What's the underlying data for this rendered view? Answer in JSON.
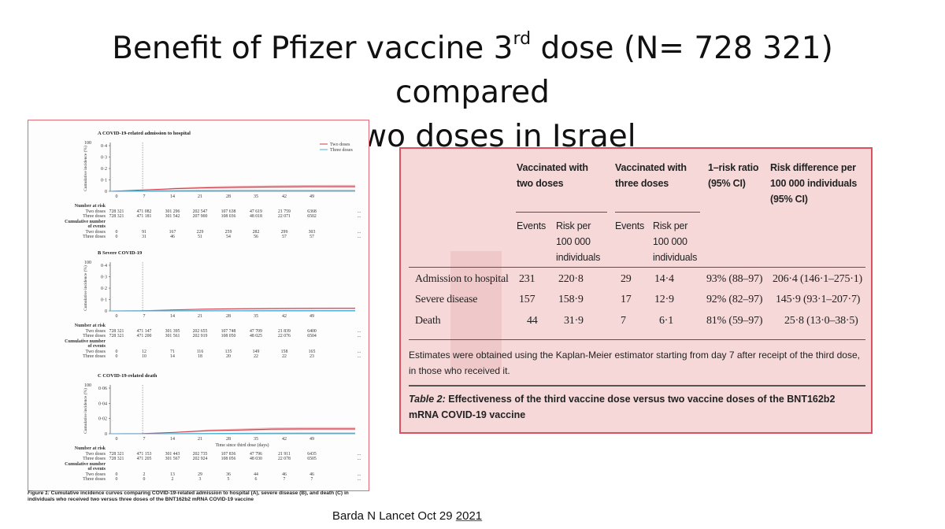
{
  "slide": {
    "title_pre": "Benefit of Pfizer vaccine 3",
    "title_sup": "rd",
    "title_post": " dose (N= 728 321) compared",
    "title_line2": "to two doses in Israel",
    "citation_pre": "Barda N Lancet Oct 29 ",
    "citation_year": "2021"
  },
  "figure": {
    "legend": [
      "Two doses",
      "Three doses"
    ],
    "ylabel": "Cumulative incidence (%)",
    "xticks": [
      "0",
      "7",
      "14",
      "21",
      "28",
      "35",
      "42",
      "49"
    ],
    "xlabel": "Time since third dose (days)",
    "labels": {
      "number_at_risk": "Number at risk",
      "cumulative": "Cumulative number",
      "of_events": "of events",
      "two_doses": "Two doses",
      "three_doses": "Three doses",
      "dots": "..."
    },
    "panels": [
      {
        "title": "A  COVID-19-related admission to hospital",
        "yticks": [
          "0·4",
          "0·3",
          "0·2",
          "0·1",
          "0"
        ],
        "ymax": 0.4,
        "risk_two": [
          "728 321",
          "471 082",
          "301 296",
          "202 547",
          "107 638",
          "47 619",
          "21 759",
          "6368"
        ],
        "risk_three": [
          "728 321",
          "471 181",
          "301 542",
          "207 900",
          "108 036",
          "48 018",
          "22 071",
          "6502"
        ],
        "events_two": [
          "0",
          "91",
          "167",
          "229",
          "259",
          "282",
          "299",
          "303"
        ],
        "events_three": [
          "0",
          "31",
          "46",
          "51",
          "54",
          "56",
          "57",
          "57"
        ]
      },
      {
        "title": "B  Severe COVID-19",
        "yticks": [
          "0·4",
          "0·3",
          "0·2",
          "0·1",
          "0"
        ],
        "ymax": 0.4,
        "risk_two": [
          "728 321",
          "471 147",
          "301 395",
          "202 655",
          "107 748",
          "47 709",
          "21 839",
          "6400"
        ],
        "risk_three": [
          "728 321",
          "471 200",
          "301 561",
          "202 919",
          "108 050",
          "48 025",
          "22 076",
          "6504"
        ],
        "events_two": [
          "0",
          "12",
          "71",
          "116",
          "135",
          "149",
          "158",
          "165"
        ],
        "events_three": [
          "0",
          "10",
          "14",
          "18",
          "20",
          "22",
          "22",
          "23"
        ]
      },
      {
        "title": "C  COVID-19-related death",
        "yticks": [
          "0·06",
          "0·04",
          "0·02",
          "0"
        ],
        "ymax": 0.06,
        "risk_two": [
          "728 321",
          "471 153",
          "301 443",
          "202 735",
          "107 836",
          "47 796",
          "21 911",
          "6435"
        ],
        "risk_three": [
          "728 321",
          "471 205",
          "301 567",
          "202 924",
          "108 056",
          "48 030",
          "22 078",
          "6505"
        ],
        "events_two": [
          "0",
          "2",
          "13",
          "29",
          "36",
          "44",
          "46",
          "46"
        ],
        "events_three": [
          "0",
          "0",
          "2",
          "3",
          "5",
          "6",
          "7",
          "7"
        ]
      }
    ],
    "caption_label": "Figure 1:",
    "caption": " Cumulative incidence curves comparing COVID-19-related admission to hospital (A), severe disease (B), and death (C) in individuals who received two versus three doses of the BNT162b2 mRNA COVID-19 vaccine"
  },
  "table": {
    "h_two": [
      "Vaccinated with",
      "two doses"
    ],
    "h_three": [
      "Vaccinated with",
      "three doses"
    ],
    "h_rr": [
      "1–risk ratio",
      "(95% CI)"
    ],
    "h_rd": [
      "Risk difference per",
      "100 000 individuals",
      "(95% CI)"
    ],
    "sub_events": "Events",
    "sub_risk": [
      "Risk per",
      "100 000",
      "individuals"
    ],
    "rows": [
      {
        "label": "Admission to hospital",
        "e2": "231",
        "r2": "220·8",
        "e3": "29",
        "r3": "14·4",
        "rr": "93% (88–97)",
        "rd": "206·4 (146·1–275·1)"
      },
      {
        "label": "Severe disease",
        "e2": "157",
        "r2": "158·9",
        "e3": "17",
        "r3": "12·9",
        "rr": "92% (82–97)",
        "rd": "145·9 (93·1–207·7)"
      },
      {
        "label": "Death",
        "e2": "44",
        "r2": "31·9",
        "e3": "7",
        "r3": "6·1",
        "rr": "81% (59–97)",
        "rd": "25·8 (13·0–38·5)"
      }
    ],
    "note": "Estimates were obtained using the Kaplan-Meier estimator starting from day 7 after receipt of the third dose, in those who received it.",
    "caption_label": "Table 2:",
    "caption": " Effectiveness of the third vaccine dose versus two vaccine doses of the BNT162b2 mRNA COVID-19 vaccine"
  }
}
